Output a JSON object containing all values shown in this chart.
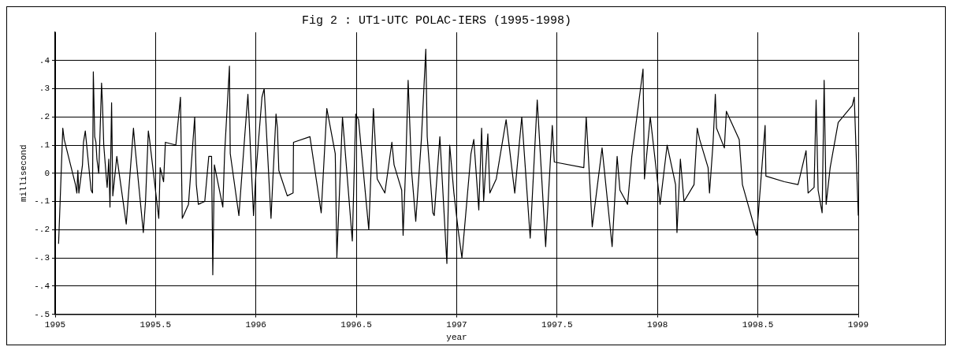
{
  "chart_data": {
    "type": "line",
    "title": "Fig 2 : UT1-UTC POLAC-IERS (1995-1998)",
    "xlabel": "year",
    "ylabel": "millisecond",
    "xlim": [
      1995,
      1999
    ],
    "xticks": [
      1995,
      1995.5,
      1996,
      1996.5,
      1997,
      1997.5,
      1998,
      1998.5,
      1999
    ],
    "ylim": [
      -0.5,
      0.5
    ],
    "yticks": [
      {
        "value": -0.5,
        "label": "-.5"
      },
      {
        "value": -0.4,
        "label": "-.4"
      },
      {
        "value": -0.3,
        "label": "-.3"
      },
      {
        "value": -0.2,
        "label": "-.2"
      },
      {
        "value": -0.1,
        "label": "-.1"
      },
      {
        "value": 0,
        "label": "0"
      },
      {
        "value": 0.1,
        "label": ".1"
      },
      {
        "value": 0.2,
        "label": ".2"
      },
      {
        "value": 0.3,
        "label": ".3"
      },
      {
        "value": 0.4,
        "label": ".4"
      }
    ],
    "grid": true,
    "marker": "none",
    "line_style": "solid",
    "series": [
      {
        "color": "#000000",
        "x": [
          1995.017,
          1995.038,
          1995.045,
          1995.101,
          1995.108,
          1995.113,
          1995.118,
          1995.136,
          1995.141,
          1995.15,
          1995.179,
          1995.186,
          1995.19,
          1995.197,
          1995.203,
          1995.208,
          1995.217,
          1995.222,
          1995.231,
          1995.236,
          1995.242,
          1995.253,
          1995.259,
          1995.267,
          1995.273,
          1995.281,
          1995.287,
          1995.307,
          1995.354,
          1995.39,
          1995.397,
          1995.439,
          1995.45,
          1995.464,
          1995.47,
          1995.516,
          1995.523,
          1995.54,
          1995.549,
          1995.601,
          1995.624,
          1995.633,
          1995.664,
          1995.689,
          1995.695,
          1995.703,
          1995.713,
          1995.745,
          1995.765,
          1995.779,
          1995.785,
          1995.793,
          1995.835,
          1995.844,
          1995.868,
          1995.872,
          1995.915,
          1995.945,
          1995.96,
          1995.988,
          1996.0,
          1996.03,
          1996.041,
          1996.075,
          1996.1,
          1996.107,
          1996.114,
          1996.156,
          1996.185,
          1996.187,
          1996.269,
          1996.325,
          1996.353,
          1996.395,
          1996.403,
          1996.431,
          1996.48,
          1996.497,
          1996.511,
          1996.562,
          1996.585,
          1996.604,
          1996.642,
          1996.677,
          1996.688,
          1996.726,
          1996.733,
          1996.747,
          1996.758,
          1996.775,
          1996.796,
          1996.824,
          1996.846,
          1996.853,
          1996.881,
          1996.888,
          1996.916,
          1996.951,
          1996.965,
          1996.986,
          1997.007,
          1997.026,
          1997.071,
          1997.085,
          1997.11,
          1997.124,
          1997.134,
          1997.155,
          1997.165,
          1997.197,
          1997.246,
          1997.289,
          1997.324,
          1997.366,
          1997.401,
          1997.443,
          1997.476,
          1997.486,
          1997.633,
          1997.645,
          1997.675,
          1997.724,
          1997.774,
          1997.799,
          1997.813,
          1997.851,
          1997.872,
          1997.928,
          1997.935,
          1997.964,
          1998.013,
          1998.048,
          1998.09,
          1998.097,
          1998.114,
          1998.132,
          1998.182,
          1998.198,
          1998.21,
          1998.252,
          1998.259,
          1998.277,
          1998.288,
          1998.294,
          1998.333,
          1998.343,
          1998.407,
          1998.423,
          1998.494,
          1998.536,
          1998.54,
          1998.632,
          1998.7,
          1998.74,
          1998.75,
          1998.78,
          1998.79,
          1998.8,
          1998.82,
          1998.83,
          1998.84,
          1998.86,
          1998.9,
          1998.97,
          1998.98,
          1999.0
        ],
        "values": [
          -0.25,
          0.16,
          0.12,
          -0.04,
          -0.07,
          0.01,
          -0.07,
          0.03,
          0.11,
          0.15,
          -0.06,
          -0.07,
          0.36,
          0.13,
          0.11,
          0.05,
          0.0,
          0.11,
          0.32,
          0.24,
          0.1,
          0.0,
          -0.05,
          0.05,
          -0.12,
          0.25,
          -0.08,
          0.06,
          -0.18,
          0.16,
          0.1,
          -0.21,
          -0.1,
          0.15,
          0.12,
          -0.16,
          0.02,
          -0.03,
          0.11,
          0.1,
          0.27,
          -0.16,
          -0.11,
          0.14,
          0.2,
          -0.04,
          -0.11,
          -0.1,
          0.06,
          0.06,
          -0.36,
          0.03,
          -0.12,
          0.07,
          0.38,
          0.07,
          -0.15,
          0.14,
          0.28,
          -0.15,
          0.0,
          0.27,
          0.3,
          -0.16,
          0.21,
          0.16,
          0.01,
          -0.08,
          -0.07,
          0.11,
          0.13,
          -0.14,
          0.23,
          0.07,
          -0.3,
          0.2,
          -0.24,
          0.21,
          0.19,
          -0.2,
          0.23,
          -0.02,
          -0.07,
          0.11,
          0.03,
          -0.06,
          -0.22,
          0.05,
          0.33,
          0.01,
          -0.17,
          0.12,
          0.44,
          0.13,
          -0.14,
          -0.15,
          0.13,
          -0.32,
          0.1,
          -0.07,
          -0.2,
          -0.3,
          0.07,
          0.12,
          -0.13,
          0.16,
          -0.1,
          0.14,
          -0.07,
          -0.02,
          0.19,
          -0.07,
          0.2,
          -0.23,
          0.26,
          -0.26,
          0.17,
          0.04,
          0.02,
          0.2,
          -0.19,
          0.09,
          -0.26,
          0.06,
          -0.06,
          -0.11,
          0.06,
          0.37,
          -0.02,
          0.2,
          -0.11,
          0.1,
          -0.04,
          -0.21,
          0.05,
          -0.1,
          -0.04,
          0.16,
          0.12,
          0.02,
          -0.07,
          0.11,
          0.28,
          0.16,
          0.09,
          0.22,
          0.12,
          -0.04,
          -0.22,
          0.17,
          -0.01,
          -0.03,
          -0.04,
          0.08,
          -0.07,
          -0.05,
          0.26,
          -0.06,
          -0.14,
          0.33,
          -0.11,
          0.02,
          0.18,
          0.24,
          0.27,
          -0.15
        ]
      }
    ]
  }
}
